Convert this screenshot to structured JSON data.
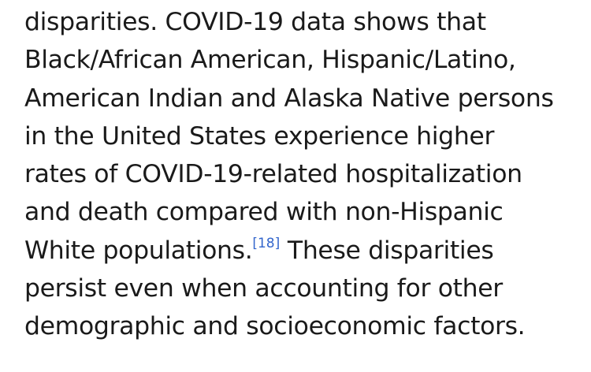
{
  "article": {
    "lines": [
      "disparities. COVID-19 data shows that",
      "Black/African American, Hispanic/Latino,",
      "American Indian and Alaska Native persons",
      "in the United States experience higher",
      "rates of COVID-19-related hospitalization",
      "and death compared with non-Hispanic"
    ],
    "line7_before": "White populations.",
    "citation": "[18]",
    "line7_after": " These disparities",
    "line8": "persist even when accounting for other",
    "line9": "demographic and socioeconomic factors."
  },
  "colors": {
    "text": "#1a1a1a",
    "link": "#3366cc",
    "background": "#ffffff"
  }
}
